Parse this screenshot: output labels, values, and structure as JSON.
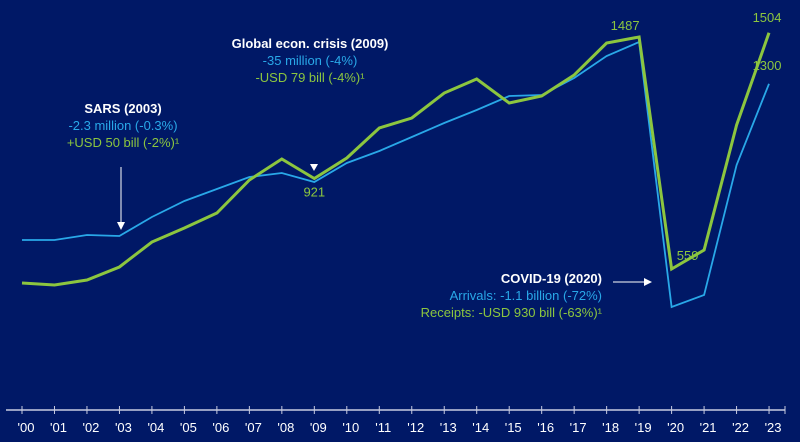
{
  "chart_data": {
    "type": "line",
    "title": "",
    "xlabel": "",
    "ylabel": "",
    "categories": [
      "'00",
      "'01",
      "'02",
      "'03",
      "'04",
      "'05",
      "'06",
      "'07",
      "'08",
      "'09",
      "'10",
      "'11",
      "'12",
      "'13",
      "'14",
      "'15",
      "'16",
      "'17",
      "'18",
      "'19",
      "'20",
      "'21",
      "'22",
      "'23"
    ],
    "ylim": [
      0,
      1600
    ],
    "grid": false,
    "series": [
      {
        "name": "Receipts",
        "color": "#8cc63f",
        "values": [
          503,
          495,
          515,
          567,
          667,
          723,
          783,
          915,
          999,
          921,
          1003,
          1123,
          1163,
          1263,
          1319,
          1223,
          1251,
          1335,
          1463,
          1487,
          559,
          635,
          1135,
          1504
        ]
      },
      {
        "name": "Arrivals",
        "color": "#29a8e8",
        "values": [
          675,
          675,
          695,
          691,
          767,
          831,
          879,
          927,
          943,
          907,
          983,
          1031,
          1087,
          1143,
          1195,
          1251,
          1255,
          1323,
          1411,
          1467,
          407,
          455,
          975,
          1300
        ]
      }
    ],
    "data_labels": [
      {
        "series": "Receipts",
        "category": "'09",
        "text": "921"
      },
      {
        "series": "Receipts",
        "category": "'19",
        "text": "1487"
      },
      {
        "series": "Receipts",
        "category": "'20",
        "text": "559"
      },
      {
        "series": "Receipts",
        "category": "'23",
        "text": "1504"
      },
      {
        "series": "Arrivals",
        "category": "'23",
        "text": "1300"
      }
    ],
    "annotations": {
      "sars": {
        "title": "SARS (2003)",
        "arrivals": "-2.3 million (-0.3%)",
        "receipts": "+USD 50 bill (-2%)¹"
      },
      "gfc": {
        "title": "Global econ. crisis (2009)",
        "arrivals": "-35 million (-4%)",
        "receipts": "-USD 79 bill (-4%)¹"
      },
      "covid": {
        "title": "COVID-19 (2020)",
        "arrivals": "Arrivals: -1.1 billion (-72%)",
        "receipts": "Receipts: -USD 930 bill (-63%)¹"
      }
    }
  },
  "colors": {
    "background": "#001866",
    "axis": "#c8cce0",
    "text": "#ffffff"
  }
}
